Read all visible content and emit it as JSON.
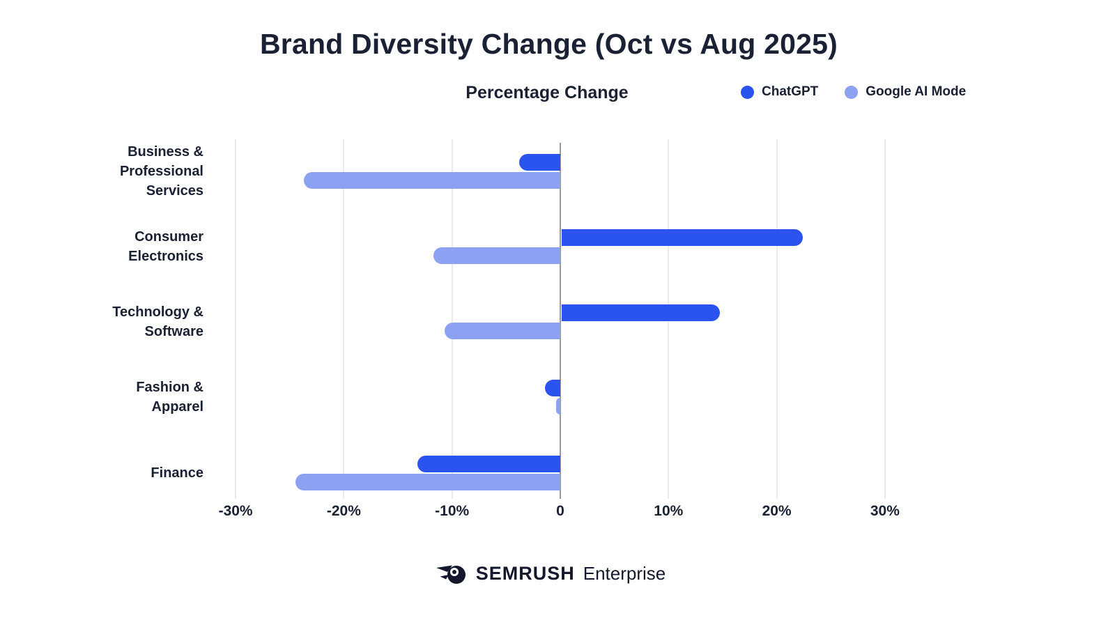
{
  "header": {
    "title": "Brand Diversity Change (Oct vs Aug 2025)",
    "subtitle": "Percentage Change"
  },
  "legend": {
    "items": [
      {
        "label": "ChatGPT",
        "color": "#2B53EE"
      },
      {
        "label": "Google AI Mode",
        "color": "#8CA1F1"
      }
    ]
  },
  "footer": {
    "brand": "SEMRUSH",
    "suffix": "Enterprise"
  },
  "colors": {
    "text": "#1B2134",
    "grid": "#EAEAEC",
    "zero_line": "#98989E",
    "background": "#FFFFFF"
  },
  "chart_data": {
    "type": "bar",
    "orientation": "horizontal",
    "title": "Brand Diversity Change (Oct vs Aug 2025)",
    "xlabel": "Percentage Change",
    "unit": "%",
    "xlim": [
      -30,
      30
    ],
    "grid": true,
    "legend_position": "top-right",
    "categories": [
      "Business & Professional Services",
      "Consumer Electronics",
      "Technology & Software",
      "Fashion & Apparel",
      "Finance"
    ],
    "category_lines": [
      [
        "Business &",
        "Professional",
        "Services"
      ],
      [
        "Consumer",
        "Electronics"
      ],
      [
        "Technology &",
        "Software"
      ],
      [
        "Fashion &",
        "Apparel"
      ],
      [
        "Finance"
      ]
    ],
    "x_ticks": [
      {
        "label": "-30%",
        "value": -30
      },
      {
        "label": "-20%",
        "value": -20
      },
      {
        "label": "-10%",
        "value": -10
      },
      {
        "label": "0",
        "value": 0
      },
      {
        "label": "10%",
        "value": 10
      },
      {
        "label": "20%",
        "value": 20
      },
      {
        "label": "30%",
        "value": 30
      }
    ],
    "series": [
      {
        "name": "ChatGPT",
        "color": "#2B53EE",
        "values": [
          -3.8,
          22.3,
          14.6,
          -1.4,
          -13.2
        ]
      },
      {
        "name": "Google AI Mode",
        "color": "#8CA1F1",
        "values": [
          -23.7,
          -11.7,
          -10.7,
          -0.4,
          -24.5
        ]
      }
    ]
  }
}
